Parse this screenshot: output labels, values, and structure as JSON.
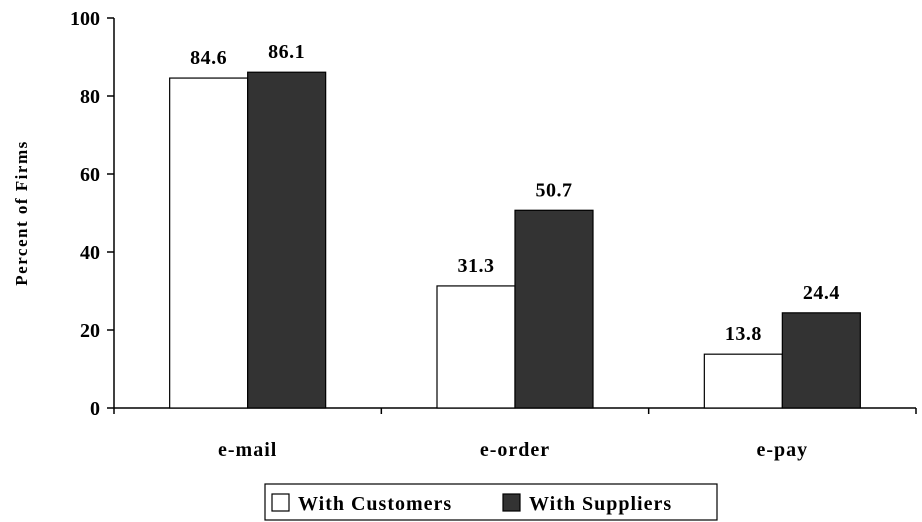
{
  "chart_data": {
    "type": "bar",
    "categories": [
      "e-mail",
      "e-order",
      "e-pay"
    ],
    "series": [
      {
        "name": "With Customers",
        "values": [
          84.6,
          31.3,
          13.8
        ],
        "color": "#ffffff"
      },
      {
        "name": "With Suppliers",
        "values": [
          86.1,
          50.7,
          24.4
        ],
        "color": "#333333"
      }
    ],
    "data_labels": [
      [
        "84.6",
        "31.3",
        "13.8"
      ],
      [
        "86.1",
        "50.7",
        "24.4"
      ]
    ],
    "xlabel": "",
    "ylabel": "Percent of Firms",
    "ylim": [
      0,
      100
    ],
    "yticks": [
      0,
      20,
      40,
      60,
      80,
      100
    ],
    "ytick_labels": [
      "0",
      "20",
      "40",
      "60",
      "80",
      "100"
    ],
    "grid": false,
    "legend_position": "bottom-center"
  }
}
